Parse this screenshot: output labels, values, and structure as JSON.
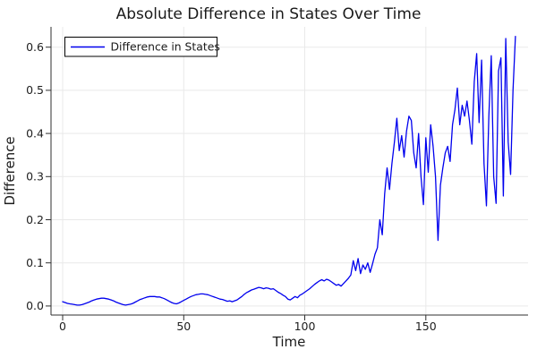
{
  "chart_data": {
    "type": "line",
    "title": "Absolute Difference in States Over Time",
    "xlabel": "Time",
    "ylabel": "Difference",
    "xticks": [
      0,
      50,
      100,
      150
    ],
    "xtick_labels": [
      "0",
      "50",
      "100",
      "150"
    ],
    "yticks": [
      0.0,
      0.1,
      0.2,
      0.3,
      0.4,
      0.5,
      0.6
    ],
    "ytick_labels": [
      "0.0",
      "0.1",
      "0.2",
      "0.3",
      "0.4",
      "0.5",
      "0.6"
    ],
    "xlim": [
      -4.8,
      192.2
    ],
    "ylim": [
      -0.021,
      0.647
    ],
    "grid": true,
    "legend_position": "top-left",
    "series": [
      {
        "name": "Difference in States",
        "color": "#0000ee",
        "x_start": 0,
        "x_step": 1,
        "y": [
          0.01,
          0.008,
          0.006,
          0.005,
          0.004,
          0.003,
          0.002,
          0.002,
          0.003,
          0.005,
          0.007,
          0.009,
          0.012,
          0.014,
          0.016,
          0.017,
          0.018,
          0.018,
          0.017,
          0.016,
          0.014,
          0.012,
          0.009,
          0.007,
          0.005,
          0.003,
          0.002,
          0.003,
          0.004,
          0.006,
          0.009,
          0.012,
          0.015,
          0.017,
          0.019,
          0.021,
          0.022,
          0.022,
          0.022,
          0.021,
          0.021,
          0.019,
          0.017,
          0.014,
          0.011,
          0.008,
          0.006,
          0.005,
          0.007,
          0.01,
          0.013,
          0.016,
          0.019,
          0.022,
          0.024,
          0.026,
          0.027,
          0.028,
          0.028,
          0.027,
          0.026,
          0.024,
          0.022,
          0.02,
          0.018,
          0.016,
          0.015,
          0.013,
          0.011,
          0.012,
          0.01,
          0.012,
          0.014,
          0.018,
          0.022,
          0.027,
          0.031,
          0.034,
          0.037,
          0.039,
          0.041,
          0.043,
          0.042,
          0.04,
          0.042,
          0.041,
          0.039,
          0.04,
          0.036,
          0.032,
          0.029,
          0.025,
          0.022,
          0.016,
          0.014,
          0.018,
          0.022,
          0.019,
          0.025,
          0.028,
          0.032,
          0.036,
          0.04,
          0.045,
          0.05,
          0.054,
          0.058,
          0.061,
          0.058,
          0.062,
          0.06,
          0.056,
          0.052,
          0.048,
          0.05,
          0.046,
          0.052,
          0.058,
          0.064,
          0.072,
          0.105,
          0.082,
          0.11,
          0.075,
          0.095,
          0.085,
          0.1,
          0.078,
          0.098,
          0.12,
          0.135,
          0.2,
          0.165,
          0.26,
          0.32,
          0.27,
          0.33,
          0.38,
          0.435,
          0.36,
          0.395,
          0.345,
          0.405,
          0.44,
          0.43,
          0.355,
          0.32,
          0.4,
          0.3,
          0.235,
          0.39,
          0.31,
          0.42,
          0.37,
          0.3,
          0.152,
          0.28,
          0.32,
          0.355,
          0.37,
          0.335,
          0.42,
          0.455,
          0.505,
          0.42,
          0.465,
          0.44,
          0.475,
          0.43,
          0.375,
          0.52,
          0.585,
          0.425,
          0.57,
          0.33,
          0.232,
          0.44,
          0.58,
          0.3,
          0.238,
          0.545,
          0.575,
          0.255,
          0.62,
          0.38,
          0.305,
          0.5,
          0.625
        ]
      }
    ],
    "colors": {
      "line": "#0000ee",
      "grid": "#e9e9e9",
      "spine": "#2f2f2f",
      "tick_label": "#202020",
      "background": "#ffffff",
      "legend_border": "#000000",
      "legend_background": "#ffffff"
    }
  }
}
